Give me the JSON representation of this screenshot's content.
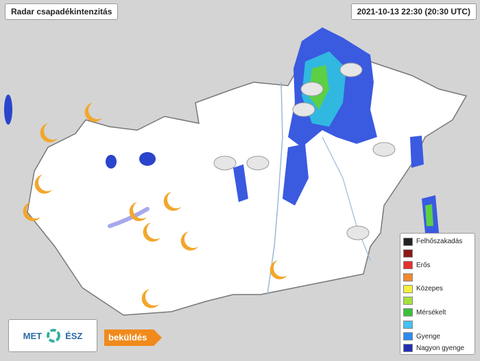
{
  "header": {
    "title": "Radar csapadékintenzitás",
    "timestamp": "2021-10-13 22:30 (20:30 UTC)"
  },
  "legend": [
    {
      "color": "#222222",
      "label": "Felhőszakadás"
    },
    {
      "color": "#8b1a1a",
      "label": null
    },
    {
      "color": "#e53030",
      "label": "Erős"
    },
    {
      "color": "#f08a30",
      "label": null
    },
    {
      "color": "#f5ef40",
      "label": "Közepes"
    },
    {
      "color": "#a8e040",
      "label": null
    },
    {
      "color": "#3cc03c",
      "label": "Mérsékelt"
    },
    {
      "color": "#45c0f0",
      "label": null
    },
    {
      "color": "#2f8af0",
      "label": "Gyenge"
    },
    {
      "color": "#2030b0",
      "label": "Nagyon gyenge"
    }
  ],
  "logo": {
    "left": "MET",
    "right": "ÉSZ"
  },
  "button": {
    "label": "beküldés"
  }
}
